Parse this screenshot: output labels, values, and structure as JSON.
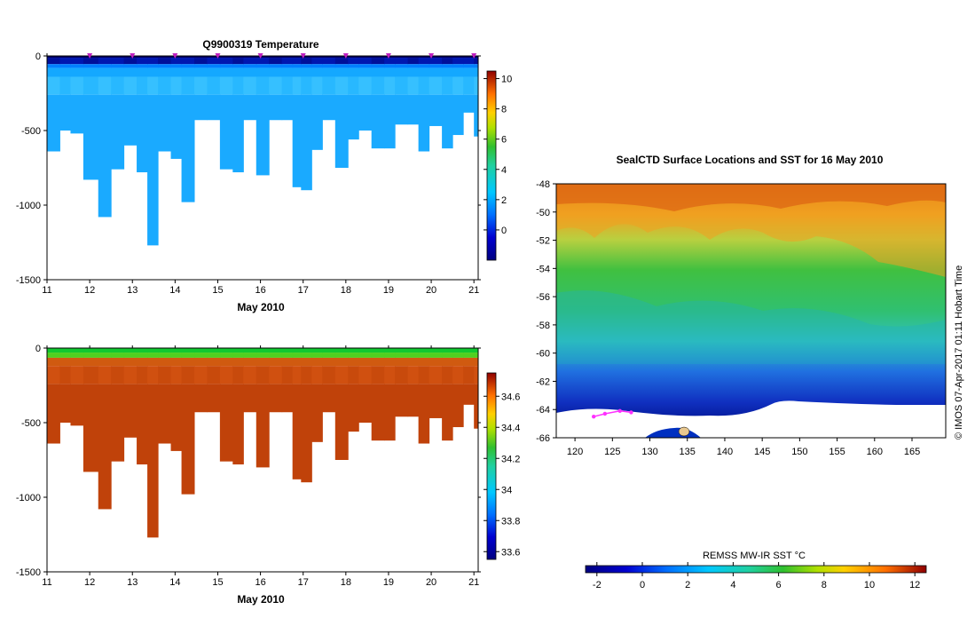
{
  "chart_data": [
    {
      "type": "heatmap",
      "panel": "temperature-profile",
      "title": "Q9900319  Temperature",
      "xlabel": "May 2010",
      "ylabel": "",
      "x_ticks": [
        "11",
        "12",
        "13",
        "14",
        "15",
        "16",
        "17",
        "18",
        "19",
        "20",
        "21"
      ],
      "xlim": [
        11,
        21.1
      ],
      "ylim": [
        -1500,
        0
      ],
      "y_ticks": [
        0,
        -500,
        -1000,
        -1500
      ],
      "y_tick_labels": [
        "0",
        "-500",
        "-1000",
        "-1500"
      ],
      "colorbar": {
        "ticks": [
          0,
          2,
          4,
          6,
          8,
          10
        ],
        "tick_labels": [
          "0",
          "2",
          "4",
          "6",
          "8",
          "10"
        ],
        "range": [
          -2,
          10.5
        ]
      },
      "profile_times": [
        11.0,
        11.3,
        11.55,
        11.85,
        12.2,
        12.5,
        12.8,
        13.1,
        13.35,
        13.6,
        13.9,
        14.15,
        14.45,
        14.75,
        15.05,
        15.35,
        15.6,
        15.9,
        16.2,
        16.5,
        16.75,
        16.95,
        17.2,
        17.45,
        17.75,
        18.05,
        18.3,
        18.6,
        18.9,
        19.15,
        19.45,
        19.7,
        19.95,
        20.25,
        20.5,
        20.75,
        21.0
      ],
      "profile_max_depth": [
        640,
        500,
        520,
        830,
        1080,
        760,
        600,
        780,
        1270,
        640,
        690,
        980,
        430,
        430,
        760,
        780,
        430,
        800,
        430,
        430,
        880,
        900,
        630,
        430,
        750,
        560,
        500,
        620,
        620,
        460,
        460,
        640,
        470,
        620,
        530,
        380,
        540
      ],
      "surface_markers": [
        12,
        13,
        14,
        15,
        16,
        17,
        18,
        19,
        20,
        21
      ]
    },
    {
      "type": "heatmap",
      "panel": "salinity-profile",
      "title": "",
      "xlabel": "May 2010",
      "x_ticks": [
        "11",
        "12",
        "13",
        "14",
        "15",
        "16",
        "17",
        "18",
        "19",
        "20",
        "21"
      ],
      "xlim": [
        11,
        21.1
      ],
      "ylim": [
        -1500,
        0
      ],
      "y_ticks": [
        0,
        -500,
        -1000,
        -1500
      ],
      "y_tick_labels": [
        "0",
        "-500",
        "-1000",
        "-1500"
      ],
      "colorbar": {
        "ticks": [
          33.6,
          33.8,
          34,
          34.2,
          34.4,
          34.6
        ],
        "tick_labels": [
          "33.6",
          "33.8",
          "34",
          "34.2",
          "34.4",
          "34.6"
        ],
        "range": [
          33.55,
          34.75
        ]
      }
    },
    {
      "type": "heatmap",
      "panel": "sst-map",
      "title": "SealCTD Surface Locations and SST for 16 May 2010",
      "xlabel": "",
      "x_ticks": [
        "120",
        "125",
        "130",
        "135",
        "140",
        "145",
        "150",
        "155",
        "160",
        "165"
      ],
      "x_values": [
        120,
        125,
        130,
        135,
        140,
        145,
        150,
        155,
        160,
        165
      ],
      "xlim": [
        117.5,
        169.5
      ],
      "y_ticks": [
        "-48",
        "-50",
        "-52",
        "-54",
        "-56",
        "-58",
        "-60",
        "-62",
        "-64",
        "-66"
      ],
      "y_values": [
        -48,
        -50,
        -52,
        -54,
        -56,
        -58,
        -60,
        -62,
        -64,
        -66
      ],
      "ylim": [
        -66,
        -48
      ],
      "colorbar": {
        "label": "REMSS MW-IR SST °C",
        "ticks": [
          -2,
          0,
          2,
          4,
          6,
          8,
          10,
          12
        ],
        "tick_labels": [
          "-2",
          "0",
          "2",
          "4",
          "6",
          "8",
          "10",
          "12"
        ],
        "range": [
          -2.5,
          12.5
        ]
      },
      "track_points": [
        [
          122.5,
          -64.5
        ],
        [
          124,
          -64.3
        ],
        [
          126,
          -64.1
        ],
        [
          127.5,
          -64.2
        ]
      ],
      "credit": "© IMOS 07-Apr-2017 01:11 Hobart Time"
    }
  ]
}
